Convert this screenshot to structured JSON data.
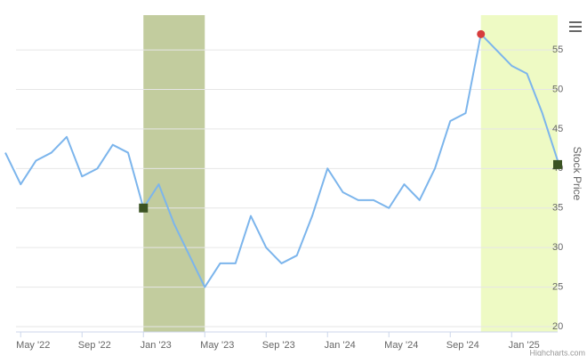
{
  "chart_data": {
    "type": "line",
    "y_axis_title": "Stock Price",
    "credits": "Highcharts.com",
    "x": [
      "2022-04",
      "2022-05",
      "2022-06",
      "2022-07",
      "2022-08",
      "2022-09",
      "2022-10",
      "2022-11",
      "2022-12",
      "2023-01",
      "2023-02",
      "2023-03",
      "2023-04",
      "2023-05",
      "2023-06",
      "2023-07",
      "2023-08",
      "2023-09",
      "2023-10",
      "2023-11",
      "2023-12",
      "2024-01",
      "2024-02",
      "2024-03",
      "2024-04",
      "2024-05",
      "2024-06",
      "2024-07",
      "2024-08",
      "2024-09",
      "2024-10",
      "2024-11",
      "2024-12",
      "2025-01",
      "2025-02",
      "2025-03",
      "2025-04"
    ],
    "series": [
      {
        "name": "Stock Price",
        "color": "#7cb5ec",
        "values": [
          42,
          38,
          41,
          42,
          44,
          39,
          40,
          43,
          42,
          35,
          38,
          33,
          29,
          25,
          28,
          28,
          34,
          30,
          28,
          29,
          34,
          40,
          37,
          36,
          36,
          35,
          38,
          36,
          40,
          46,
          47,
          57,
          55,
          53,
          52,
          47,
          41
        ]
      }
    ],
    "xlim": [
      "2022-04",
      "2025-04"
    ],
    "xticks": [
      {
        "value": "2022-05",
        "label": "May '22"
      },
      {
        "value": "2022-09",
        "label": "Sep '22"
      },
      {
        "value": "2023-01",
        "label": "Jan '23"
      },
      {
        "value": "2023-05",
        "label": "May '23"
      },
      {
        "value": "2023-09",
        "label": "Sep '23"
      },
      {
        "value": "2024-01",
        "label": "Jan '24"
      },
      {
        "value": "2024-05",
        "label": "May '24"
      },
      {
        "value": "2024-09",
        "label": "Sep '24"
      },
      {
        "value": "2025-01",
        "label": "Jan '25"
      }
    ],
    "ylim": [
      20,
      59.4
    ],
    "yticks": [
      20,
      25,
      30,
      35,
      40,
      45,
      50,
      55
    ],
    "grid": true,
    "bands": [
      {
        "from": "2023-01",
        "to": "2023-05",
        "color": "#c2cc9e"
      },
      {
        "from": "2024-11",
        "to": "2025-04",
        "color": "#eefac4"
      }
    ],
    "markers": [
      {
        "x": "2023-01",
        "y": 35,
        "shape": "square",
        "color": "#3b5323"
      },
      {
        "x": "2024-11",
        "y": 57,
        "shape": "circle",
        "color": "#d63c3c"
      },
      {
        "x": "2025-04",
        "y": 40.5,
        "shape": "square",
        "color": "#3b5323"
      }
    ]
  }
}
